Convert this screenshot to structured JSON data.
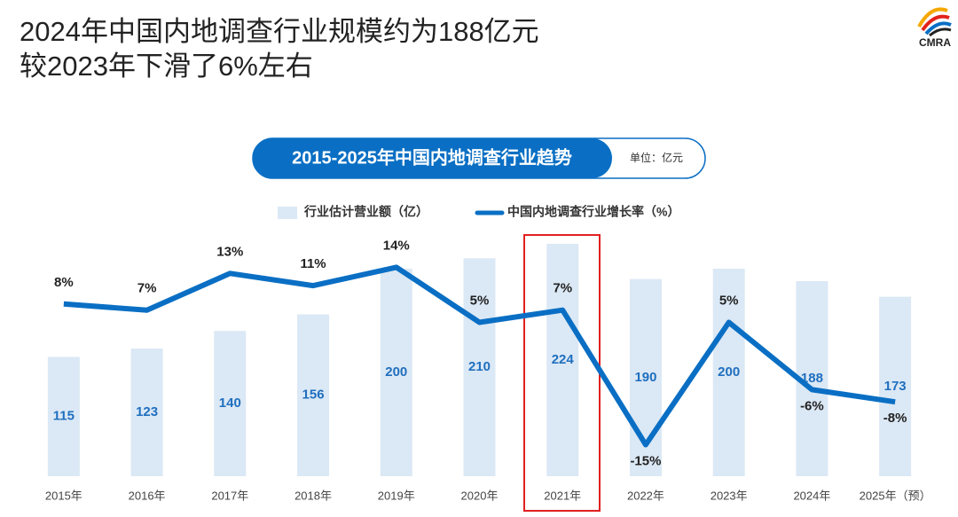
{
  "header": {
    "lines": [
      "2024年中国内地调查行业规模约为188亿元",
      "较2023年下滑了6%左右"
    ],
    "logo": "CMRA"
  },
  "chart_data": {
    "type": "bar",
    "title": "2015-2025年中国内地调查行业趋势",
    "subtitle": "单位：亿元",
    "categories": [
      "2015年",
      "2016年",
      "2017年",
      "2018年",
      "2019年",
      "2020年",
      "2021年",
      "2022年",
      "2023年",
      "2024年",
      "2025年（预）"
    ],
    "series": [
      {
        "name": "行业估计营业额（亿）",
        "type": "bar",
        "color": "#dbe8f5",
        "values": [
          115,
          123,
          140,
          156,
          200,
          210,
          224,
          190,
          200,
          188,
          173
        ]
      },
      {
        "name": "中国内地调查行业增长率（%）",
        "type": "line",
        "axis": "y2",
        "color": "#0a6fc4",
        "values": [
          8,
          7,
          13,
          11,
          14,
          5,
          7,
          -15,
          5,
          -6,
          -8
        ],
        "value_labels": [
          "8%",
          "7%",
          "13%",
          "11%",
          "14%",
          "5%",
          "7%",
          "-15%",
          "5%",
          "-6%",
          "-8%"
        ]
      }
    ]
  }
}
